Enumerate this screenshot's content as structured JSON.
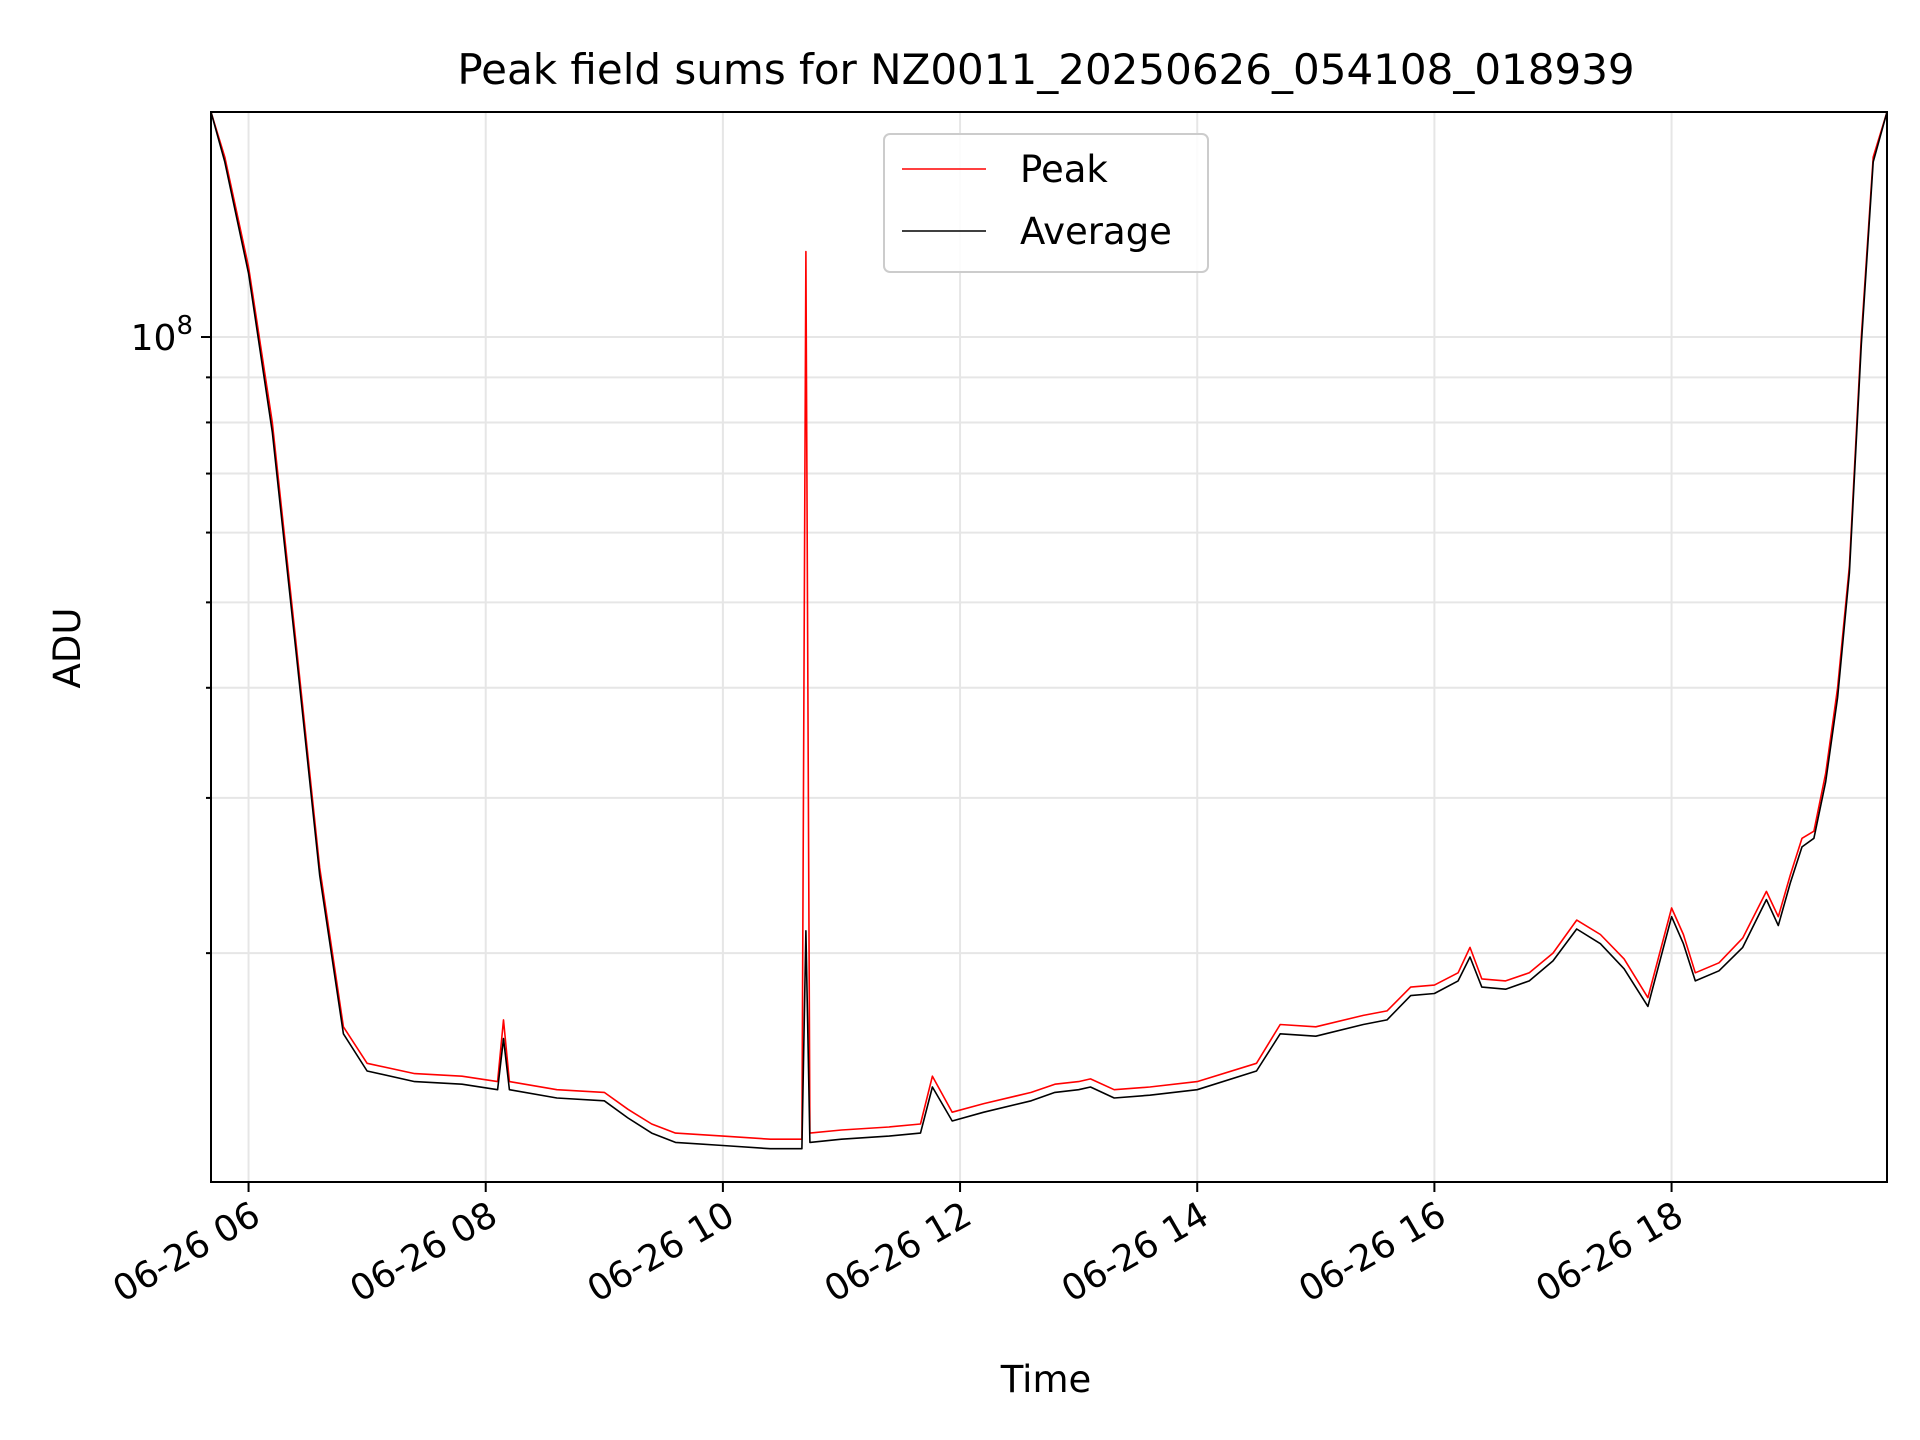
{
  "chart_data": {
    "type": "line",
    "title": "Peak field sums for NZ0011_20250626_054108_018939",
    "xlabel": "Time",
    "ylabel": "ADU",
    "y_scale": "log",
    "y_major_tick_label": {
      "base": "10",
      "exponent": "8",
      "value": 100000000
    },
    "ylim": [
      11000000,
      180000000
    ],
    "xlim": [
      "2025-06-26 05:41",
      "2025-06-26 19:49"
    ],
    "x_tick_labels": [
      "06-26 06",
      "06-26 08",
      "06-26 10",
      "06-26 12",
      "06-26 14",
      "06-26 16",
      "06-26 18"
    ],
    "x_ticks": [
      "2025-06-26 06:00",
      "2025-06-26 08:00",
      "2025-06-26 10:00",
      "2025-06-26 12:00",
      "2025-06-26 14:00",
      "2025-06-26 16:00",
      "2025-06-26 18:00"
    ],
    "grid": true,
    "legend_position": "top-center",
    "series": [
      {
        "name": "Peak",
        "color": "#ff0000",
        "x": [
          "2025-06-26 05:41",
          "2025-06-26 05:48",
          "2025-06-26 06:00",
          "2025-06-26 06:12",
          "2025-06-26 06:24",
          "2025-06-26 06:36",
          "2025-06-26 06:48",
          "2025-06-26 07:00",
          "2025-06-26 07:24",
          "2025-06-26 07:48",
          "2025-06-26 08:06",
          "2025-06-26 08:09",
          "2025-06-26 08:12",
          "2025-06-26 08:36",
          "2025-06-26 09:00",
          "2025-06-26 09:12",
          "2025-06-26 09:24",
          "2025-06-26 09:36",
          "2025-06-26 10:00",
          "2025-06-26 10:24",
          "2025-06-26 10:40",
          "2025-06-26 10:42",
          "2025-06-26 10:44",
          "2025-06-26 11:00",
          "2025-06-26 11:24",
          "2025-06-26 11:40",
          "2025-06-26 11:46",
          "2025-06-26 11:56",
          "2025-06-26 12:12",
          "2025-06-26 12:36",
          "2025-06-26 12:48",
          "2025-06-26 13:00",
          "2025-06-26 13:06",
          "2025-06-26 13:18",
          "2025-06-26 13:36",
          "2025-06-26 14:00",
          "2025-06-26 14:30",
          "2025-06-26 14:42",
          "2025-06-26 15:00",
          "2025-06-26 15:24",
          "2025-06-26 15:36",
          "2025-06-26 15:48",
          "2025-06-26 16:00",
          "2025-06-26 16:12",
          "2025-06-26 16:18",
          "2025-06-26 16:24",
          "2025-06-26 16:36",
          "2025-06-26 16:48",
          "2025-06-26 17:00",
          "2025-06-26 17:12",
          "2025-06-26 17:24",
          "2025-06-26 17:36",
          "2025-06-26 17:48",
          "2025-06-26 18:00",
          "2025-06-26 18:06",
          "2025-06-26 18:12",
          "2025-06-26 18:24",
          "2025-06-26 18:36",
          "2025-06-26 18:48",
          "2025-06-26 18:54",
          "2025-06-26 19:00",
          "2025-06-26 19:06",
          "2025-06-26 19:12",
          "2025-06-26 19:18",
          "2025-06-26 19:24",
          "2025-06-26 19:30",
          "2025-06-26 19:36",
          "2025-06-26 19:42",
          "2025-06-26 19:49"
        ],
        "values": [
          180000000,
          160000000,
          120000000,
          80000000,
          45000000,
          25000000,
          16500000,
          15000000,
          14600000,
          14500000,
          14300000,
          16800000,
          14300000,
          14000000,
          13900000,
          13300000,
          12800000,
          12500000,
          12400000,
          12300000,
          12300000,
          125000000,
          12500000,
          12600000,
          12700000,
          12800000,
          14500000,
          13200000,
          13500000,
          13900000,
          14200000,
          14300000,
          14400000,
          14000000,
          14100000,
          14300000,
          15000000,
          16600000,
          16500000,
          17000000,
          17200000,
          18300000,
          18400000,
          19000000,
          20300000,
          18700000,
          18600000,
          19000000,
          20000000,
          21800000,
          21000000,
          19700000,
          17800000,
          22500000,
          21000000,
          19000000,
          19500000,
          20800000,
          23500000,
          22000000,
          24500000,
          27000000,
          27500000,
          32000000,
          40000000,
          55000000,
          100000000,
          160000000,
          180000000
        ]
      },
      {
        "name": "Average",
        "color": "#000000",
        "x": [
          "2025-06-26 05:41",
          "2025-06-26 05:48",
          "2025-06-26 06:00",
          "2025-06-26 06:12",
          "2025-06-26 06:24",
          "2025-06-26 06:36",
          "2025-06-26 06:48",
          "2025-06-26 07:00",
          "2025-06-26 07:24",
          "2025-06-26 07:48",
          "2025-06-26 08:06",
          "2025-06-26 08:09",
          "2025-06-26 08:12",
          "2025-06-26 08:36",
          "2025-06-26 09:00",
          "2025-06-26 09:12",
          "2025-06-26 09:24",
          "2025-06-26 09:36",
          "2025-06-26 10:00",
          "2025-06-26 10:24",
          "2025-06-26 10:40",
          "2025-06-26 10:42",
          "2025-06-26 10:44",
          "2025-06-26 11:00",
          "2025-06-26 11:24",
          "2025-06-26 11:40",
          "2025-06-26 11:46",
          "2025-06-26 11:56",
          "2025-06-26 12:12",
          "2025-06-26 12:36",
          "2025-06-26 12:48",
          "2025-06-26 13:00",
          "2025-06-26 13:06",
          "2025-06-26 13:18",
          "2025-06-26 13:36",
          "2025-06-26 14:00",
          "2025-06-26 14:30",
          "2025-06-26 14:42",
          "2025-06-26 15:00",
          "2025-06-26 15:24",
          "2025-06-26 15:36",
          "2025-06-26 15:48",
          "2025-06-26 16:00",
          "2025-06-26 16:12",
          "2025-06-26 16:18",
          "2025-06-26 16:24",
          "2025-06-26 16:36",
          "2025-06-26 16:48",
          "2025-06-26 17:00",
          "2025-06-26 17:12",
          "2025-06-26 17:24",
          "2025-06-26 17:36",
          "2025-06-26 17:48",
          "2025-06-26 18:00",
          "2025-06-26 18:06",
          "2025-06-26 18:12",
          "2025-06-26 18:24",
          "2025-06-26 18:36",
          "2025-06-26 18:48",
          "2025-06-26 18:54",
          "2025-06-26 19:00",
          "2025-06-26 19:06",
          "2025-06-26 19:12",
          "2025-06-26 19:18",
          "2025-06-26 19:24",
          "2025-06-26 19:30",
          "2025-06-26 19:36",
          "2025-06-26 19:42",
          "2025-06-26 19:49"
        ],
        "values": [
          180000000,
          158000000,
          118000000,
          78000000,
          44000000,
          24500000,
          16200000,
          14700000,
          14300000,
          14200000,
          14000000,
          16000000,
          14000000,
          13700000,
          13600000,
          13000000,
          12500000,
          12200000,
          12100000,
          12000000,
          12000000,
          21200000,
          12200000,
          12300000,
          12400000,
          12500000,
          14100000,
          12900000,
          13200000,
          13600000,
          13900000,
          14000000,
          14100000,
          13700000,
          13800000,
          14000000,
          14700000,
          16200000,
          16100000,
          16600000,
          16800000,
          17900000,
          18000000,
          18600000,
          19800000,
          18300000,
          18200000,
          18600000,
          19600000,
          21300000,
          20500000,
          19200000,
          17400000,
          22000000,
          20500000,
          18600000,
          19100000,
          20300000,
          23000000,
          21500000,
          24000000,
          26400000,
          27000000,
          31300000,
          39000000,
          54000000,
          98000000,
          158000000,
          180000000
        ]
      }
    ]
  }
}
